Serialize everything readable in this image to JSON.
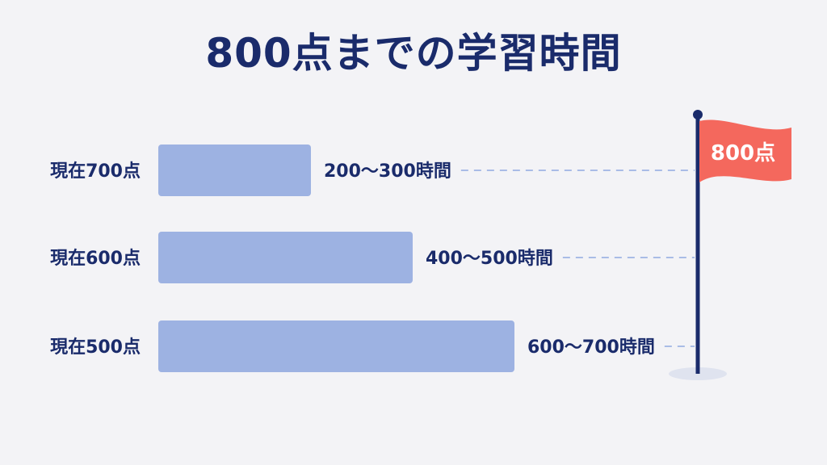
{
  "title": "800点までの学習時間",
  "goal": {
    "label": "800点",
    "color": "#f4685d"
  },
  "colors": {
    "bar": "#9db2e2",
    "text": "#1a2b6b",
    "pole": "#1a2b6b",
    "dash": "#a9bce6"
  },
  "chart_data": {
    "type": "bar",
    "orientation": "horizontal",
    "title": "800点までの学習時間",
    "categories": [
      "現在700点",
      "現在600点",
      "現在500点"
    ],
    "ranges": [
      [
        200,
        300
      ],
      [
        400,
        500
      ],
      [
        600,
        700
      ]
    ],
    "value_labels": [
      "200〜300時間",
      "400〜500時間",
      "600〜700時間"
    ],
    "values": [
      300,
      500,
      700
    ],
    "xlim": [
      0,
      700
    ],
    "grid": false
  }
}
